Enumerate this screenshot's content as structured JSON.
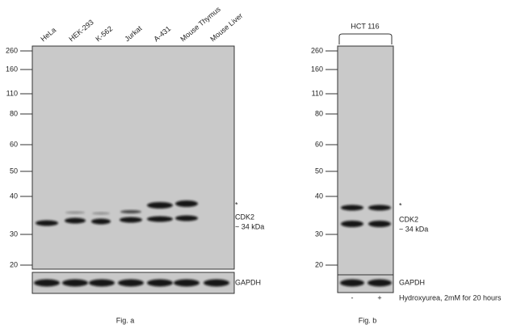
{
  "panel_a": {
    "lanes": [
      "HeLa",
      "HEK-293",
      "K-562",
      "Jurkat",
      "A-431",
      "Mouse Thymus",
      "Mouse Liver"
    ],
    "markers": [
      "260",
      "160",
      "110",
      "80",
      "60",
      "50",
      "40",
      "30",
      "20"
    ],
    "band_label": {
      "asterisk": "*",
      "protein": "CDK2",
      "size": "~ 34 kDa"
    },
    "loading_control": "GAPDH",
    "caption": "Fig. a"
  },
  "panel_b": {
    "cell_line": "HCT 116",
    "markers": [
      "260",
      "160",
      "110",
      "80",
      "60",
      "50",
      "40",
      "30",
      "20"
    ],
    "band_label": {
      "asterisk": "*",
      "protein": "CDK2",
      "size": "~ 34 kDa"
    },
    "loading_control": "GAPDH",
    "treatments": [
      "-",
      "+"
    ],
    "treatment_label": "Hydroxyurea, 2mM for 20 hours",
    "caption": "Fig. b"
  }
}
